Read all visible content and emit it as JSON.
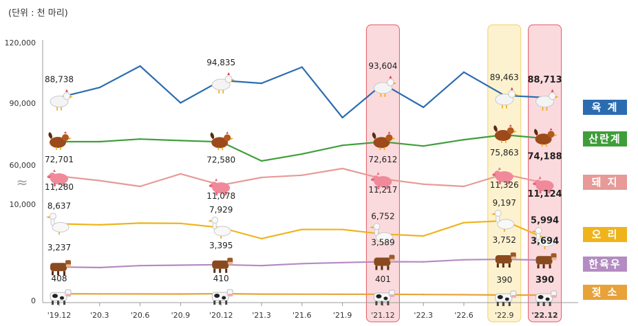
{
  "unit_label": "(단위 : 천 마리)",
  "chart_data": {
    "type": "line",
    "title": "",
    "xlabel": "",
    "ylabel": "",
    "categories": [
      "'19.12",
      "'20.3",
      "'20.6",
      "'20.9",
      "'20.12",
      "'21.3",
      "'21.6",
      "'21.9",
      "'21.12",
      "'22.3",
      "'22.6",
      "'22.9",
      "'22.12"
    ],
    "y_tick_labels": [
      "120,000",
      "90,000",
      "60,000",
      "10,000",
      "0"
    ],
    "axis_break": "≈",
    "highlighted_periods": [
      "'21.12",
      "'22.9",
      "'22.12"
    ],
    "labeled_indices": [
      0,
      4,
      8,
      11,
      12
    ],
    "series": [
      {
        "key": "broiler",
        "name": "육 계",
        "color": "#2b6cb0",
        "icon": "white-chicken-icon",
        "values": [
          88738,
          92300,
          100000,
          86800,
          94835,
          93800,
          99600,
          81500,
          93604,
          85200,
          97800,
          89463,
          88713
        ]
      },
      {
        "key": "layer",
        "name": "산란계",
        "color": "#3f9e3a",
        "icon": "brown-hen-icon",
        "values": [
          72701,
          72700,
          73900,
          73200,
          72580,
          63800,
          67000,
          71000,
          72612,
          70700,
          73600,
          75863,
          74188
        ]
      },
      {
        "key": "pig",
        "name": "돼 지",
        "color": "#e79a97",
        "icon": "pig-icon",
        "values": [
          11280,
          11180,
          11050,
          11330,
          11078,
          11250,
          11300,
          11450,
          11217,
          11100,
          11050,
          11326,
          11124
        ]
      },
      {
        "key": "duck",
        "name": "오 리",
        "color": "#efb41c",
        "icon": "duck-icon",
        "values": [
          8637,
          8450,
          8760,
          8720,
          7929,
          5900,
          7600,
          7590,
          6752,
          6400,
          8850,
          9197,
          5994
        ]
      },
      {
        "key": "hanwoo",
        "name": "한육우",
        "color": "#b48bc2",
        "icon": "brown-cow-icon",
        "values": [
          3237,
          3200,
          3330,
          3360,
          3395,
          3330,
          3460,
          3530,
          3589,
          3580,
          3720,
          3752,
          3694
        ]
      },
      {
        "key": "dairy",
        "name": "젖 소",
        "color": "#e8a23a",
        "icon": "dairy-cow-icon",
        "values": [
          408,
          407,
          406,
          405,
          410,
          404,
          403,
          402,
          401,
          398,
          395,
          390,
          390
        ]
      }
    ],
    "point_labels": {
      "broiler": [
        "88,738",
        "94,835",
        "93,604",
        "89,463",
        "88,713"
      ],
      "layer": [
        "72,701",
        "72,580",
        "72,612",
        "75,863",
        "74,188"
      ],
      "pig": [
        "11,280",
        "11,078",
        "11,217",
        "11,326",
        "11,124"
      ],
      "duck": [
        "8,637",
        "7,929",
        "6,752",
        "9,197",
        "5,994"
      ],
      "hanwoo": [
        "3,237",
        "3,395",
        "3,589",
        "3,752",
        "3,694"
      ],
      "dairy": [
        "408",
        "410",
        "401",
        "390",
        "390"
      ]
    }
  }
}
